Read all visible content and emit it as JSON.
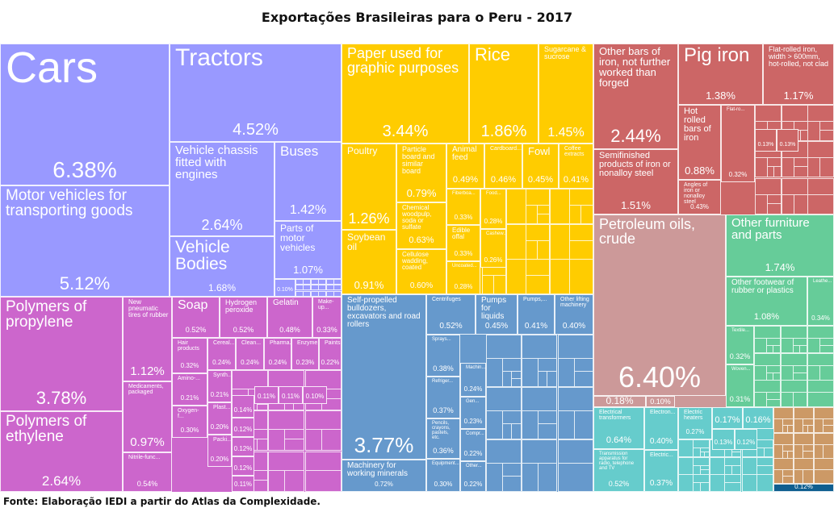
{
  "chart_data": {
    "type": "treemap",
    "title": "Exportações Brasileiras para o Peru - 2017",
    "source": "Fonte: Elaboração IEDI a partir do Atlas da Complexidade.",
    "sector_colors": {
      "vehicles": "#9999ff",
      "chemicals": "#cc66cc",
      "agriculture": "#ffcc00",
      "metals": "#cc6666",
      "machinery": "#6699cc",
      "minerals": "#cc9999",
      "textiles_furniture": "#66cc99",
      "electronics": "#66cccc",
      "stone_glass": "#cc9966",
      "other": "#0f5e8f"
    },
    "items": [
      {
        "label": "Cars",
        "value": 6.38,
        "sector": "vehicles"
      },
      {
        "label": "Motor vehicles for transporting goods",
        "value": 5.12,
        "sector": "vehicles"
      },
      {
        "label": "Tractors",
        "value": 4.52,
        "sector": "vehicles"
      },
      {
        "label": "Vehicle chassis fitted with engines",
        "value": 2.64,
        "sector": "vehicles"
      },
      {
        "label": "Vehicle Bodies",
        "value": 1.68,
        "sector": "vehicles"
      },
      {
        "label": "Buses",
        "value": 1.42,
        "sector": "vehicles"
      },
      {
        "label": "Parts of motor vehicles",
        "value": 1.07,
        "sector": "vehicles"
      },
      {
        "label": "",
        "value": 0.1,
        "sector": "vehicles"
      },
      {
        "label": "Polymers of propylene",
        "value": 3.78,
        "sector": "chemicals"
      },
      {
        "label": "Polymers of ethylene",
        "value": 2.64,
        "sector": "chemicals"
      },
      {
        "label": "New pneumatic tires of rubber",
        "value": 1.12,
        "sector": "chemicals"
      },
      {
        "label": "Medicaments, packaged",
        "value": 0.97,
        "sector": "chemicals"
      },
      {
        "label": "Nitrile-func...",
        "value": 0.54,
        "sector": "chemicals"
      },
      {
        "label": "Soap",
        "value": 0.52,
        "sector": "chemicals"
      },
      {
        "label": "Hydrogen peroxide",
        "value": 0.52,
        "sector": "chemicals"
      },
      {
        "label": "Gelatin",
        "value": 0.48,
        "sector": "chemicals"
      },
      {
        "label": "Make-up...",
        "value": 0.33,
        "sector": "chemicals"
      },
      {
        "label": "Hair products",
        "value": 0.32,
        "sector": "chemicals"
      },
      {
        "label": "Cereal...",
        "value": 0.24,
        "sector": "chemicals"
      },
      {
        "label": "Clean...",
        "value": 0.24,
        "sector": "chemicals"
      },
      {
        "label": "Pharma...",
        "value": 0.24,
        "sector": "chemicals"
      },
      {
        "label": "Enzyme...",
        "value": 0.23,
        "sector": "chemicals"
      },
      {
        "label": "Paints...",
        "value": 0.22,
        "sector": "chemicals"
      },
      {
        "label": "Amino-...",
        "value": 0.21,
        "sector": "chemicals"
      },
      {
        "label": "Oxygen-f...",
        "value": 0.3,
        "sector": "chemicals"
      },
      {
        "label": "Synth...",
        "value": 0.21,
        "sector": "chemicals"
      },
      {
        "label": "Plast...",
        "value": 0.2,
        "sector": "chemicals"
      },
      {
        "label": "Packi...",
        "value": 0.2,
        "sector": "chemicals"
      },
      {
        "label": "",
        "value": 0.14,
        "sector": "chemicals"
      },
      {
        "label": "",
        "value": 0.12,
        "sector": "chemicals"
      },
      {
        "label": "",
        "value": 0.12,
        "sector": "chemicals"
      },
      {
        "label": "",
        "value": 0.12,
        "sector": "chemicals"
      },
      {
        "label": "",
        "value": 0.11,
        "sector": "chemicals"
      },
      {
        "label": "",
        "value": 0.11,
        "sector": "chemicals"
      },
      {
        "label": "",
        "value": 0.11,
        "sector": "chemicals"
      },
      {
        "label": "",
        "value": 0.1,
        "sector": "chemicals"
      },
      {
        "label": "Paper used for graphic purposes",
        "value": 3.44,
        "sector": "agriculture"
      },
      {
        "label": "Rice",
        "value": 1.86,
        "sector": "agriculture"
      },
      {
        "label": "Sugarcane & sucrose",
        "value": 1.45,
        "sector": "agriculture"
      },
      {
        "label": "Poultry",
        "value": 1.26,
        "sector": "agriculture"
      },
      {
        "label": "Soybean oil",
        "value": 0.91,
        "sector": "agriculture"
      },
      {
        "label": "Particle board and similar board",
        "value": 0.79,
        "sector": "agriculture"
      },
      {
        "label": "Chemical woodpulp, soda or sulfate",
        "value": 0.63,
        "sector": "agriculture"
      },
      {
        "label": "Cellulose wadding, coated",
        "value": 0.6,
        "sector": "agriculture"
      },
      {
        "label": "Animal feed",
        "value": 0.49,
        "sector": "agriculture"
      },
      {
        "label": "Cardboard...",
        "value": 0.46,
        "sector": "agriculture"
      },
      {
        "label": "Fowl",
        "value": 0.45,
        "sector": "agriculture"
      },
      {
        "label": "Coffee extracts",
        "value": 0.41,
        "sector": "agriculture"
      },
      {
        "label": "Fiberboa...",
        "value": 0.33,
        "sector": "agriculture"
      },
      {
        "label": "Edible offal",
        "value": 0.33,
        "sector": "agriculture"
      },
      {
        "label": "Uncoated...",
        "value": 0.28,
        "sector": "agriculture"
      },
      {
        "label": "Food...",
        "value": 0.28,
        "sector": "agriculture"
      },
      {
        "label": "Cashew...",
        "value": 0.26,
        "sector": "agriculture"
      },
      {
        "label": "Self-propelled bulldozers, excavators and road rollers",
        "value": 3.77,
        "sector": "machinery"
      },
      {
        "label": "Machinery for working minerals",
        "value": 0.72,
        "sector": "machinery"
      },
      {
        "label": "Centrifuges",
        "value": 0.52,
        "sector": "machinery"
      },
      {
        "label": "Pumps for liquids",
        "value": 0.45,
        "sector": "machinery"
      },
      {
        "label": "Pumps,...",
        "value": 0.41,
        "sector": "machinery"
      },
      {
        "label": "Other lifting machinery",
        "value": 0.4,
        "sector": "machinery"
      },
      {
        "label": "Sprays...",
        "value": 0.38,
        "sector": "machinery"
      },
      {
        "label": "Refriger...",
        "value": 0.37,
        "sector": "machinery"
      },
      {
        "label": "Pencils, crayons, pastels, etc.",
        "value": 0.36,
        "sector": "machinery"
      },
      {
        "label": "Equipment...",
        "value": 0.3,
        "sector": "machinery"
      },
      {
        "label": "Machin...",
        "value": 0.24,
        "sector": "machinery"
      },
      {
        "label": "Gen...",
        "value": 0.23,
        "sector": "machinery"
      },
      {
        "label": "Compr...",
        "value": 0.22,
        "sector": "machinery"
      },
      {
        "label": "Other...",
        "value": 0.22,
        "sector": "machinery"
      },
      {
        "label": "Other bars of iron, not further worked than forged",
        "value": 2.44,
        "sector": "metals"
      },
      {
        "label": "Semifinished products of iron or nonalloy steel",
        "value": 1.51,
        "sector": "metals"
      },
      {
        "label": "Pig iron",
        "value": 1.38,
        "sector": "metals"
      },
      {
        "label": "Flat-rolled iron, width > 600mm, hot-rolled, not clad",
        "value": 1.17,
        "sector": "metals"
      },
      {
        "label": "Hot rolled bars of iron",
        "value": 0.88,
        "sector": "metals"
      },
      {
        "label": "Angles of iron or nonalloy steel",
        "value": 0.43,
        "sector": "metals"
      },
      {
        "label": "Flat-ro...",
        "value": 0.32,
        "sector": "metals"
      },
      {
        "label": "",
        "value": 0.13,
        "sector": "metals"
      },
      {
        "label": "",
        "value": 0.13,
        "sector": "metals"
      },
      {
        "label": "Petroleum oils, crude",
        "value": 6.4,
        "sector": "minerals"
      },
      {
        "label": "",
        "value": 0.18,
        "sector": "minerals"
      },
      {
        "label": "",
        "value": 0.1,
        "sector": "minerals"
      },
      {
        "label": "Other furniture and parts",
        "value": 1.74,
        "sector": "textiles_furniture"
      },
      {
        "label": "Other footwear of rubber or plastics",
        "value": 1.08,
        "sector": "textiles_furniture"
      },
      {
        "label": "Leathe...",
        "value": 0.34,
        "sector": "textiles_furniture"
      },
      {
        "label": "Textile...",
        "value": 0.32,
        "sector": "textiles_furniture"
      },
      {
        "label": "Woven...",
        "value": 0.31,
        "sector": "textiles_furniture"
      },
      {
        "label": "Electrical transformers",
        "value": 0.64,
        "sector": "electronics"
      },
      {
        "label": "Transmission apparatus for radio, telephone and TV",
        "value": 0.52,
        "sector": "electronics"
      },
      {
        "label": "Electron...",
        "value": 0.4,
        "sector": "electronics"
      },
      {
        "label": "Electric...",
        "value": 0.37,
        "sector": "electronics"
      },
      {
        "label": "Electric heaters",
        "value": 0.27,
        "sector": "electronics"
      },
      {
        "label": "",
        "value": 0.17,
        "sector": "electronics"
      },
      {
        "label": "",
        "value": 0.16,
        "sector": "electronics"
      },
      {
        "label": "",
        "value": 0.13,
        "sector": "electronics"
      },
      {
        "label": "",
        "value": 0.12,
        "sector": "electronics"
      },
      {
        "label": "",
        "value": 0.12,
        "sector": "other"
      }
    ]
  }
}
